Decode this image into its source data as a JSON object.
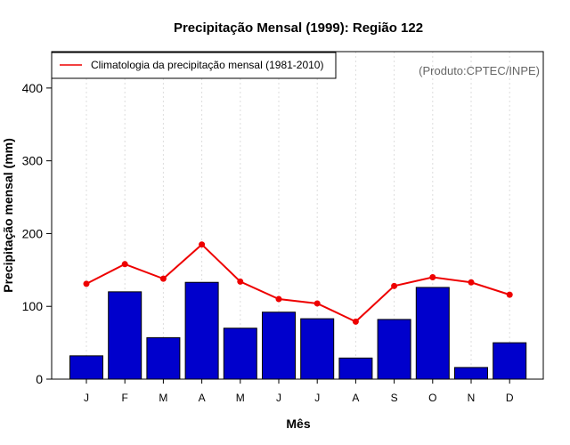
{
  "chart_data": {
    "type": "bar",
    "title": "Precipitação Mensal (1999): Região 122",
    "xlabel": "Mês",
    "ylabel": "Precipitação mensal (mm)",
    "ylim": [
      0,
      450
    ],
    "yticks": [
      0,
      100,
      200,
      300,
      400
    ],
    "grid": "vertical dotted",
    "categories": [
      "J",
      "F",
      "M",
      "A",
      "M",
      "J",
      "J",
      "A",
      "S",
      "O",
      "N",
      "D"
    ],
    "series": [
      {
        "name": "Precipitação mensal (1999)",
        "type": "bar",
        "values": [
          32,
          120,
          57,
          133,
          70,
          92,
          83,
          29,
          82,
          126,
          16,
          50
        ]
      },
      {
        "name": "Climatologia da precipitação mensal (1981-2010)",
        "type": "line",
        "values": [
          131,
          158,
          138,
          185,
          134,
          110,
          104,
          79,
          128,
          140,
          133,
          116
        ]
      }
    ],
    "legend": {
      "label": "Climatologia da precipitação mensal (1981-2010)",
      "position": "top-left"
    },
    "credit": "(Produto:CPTEC/INPE)",
    "colors": {
      "bar": "#0000cc",
      "line": "#ee0000",
      "grid": "#dddddd"
    }
  }
}
